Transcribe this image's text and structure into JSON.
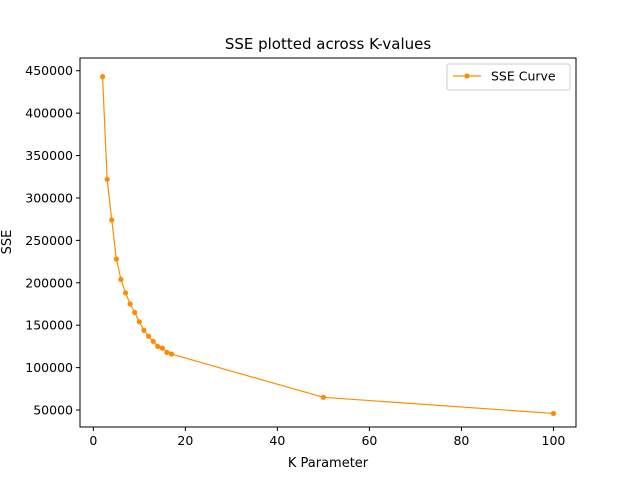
{
  "chart_data": {
    "type": "line",
    "title": "SSE plotted across K-values",
    "xlabel": "K Parameter",
    "ylabel": "SSE",
    "xlim": [
      -2.9,
      104.9
    ],
    "ylim": [
      30000,
      465000
    ],
    "xticks": [
      0,
      20,
      40,
      60,
      80,
      100
    ],
    "yticks": [
      50000,
      100000,
      150000,
      200000,
      250000,
      300000,
      350000,
      400000,
      450000
    ],
    "xtick_labels": [
      "0",
      "20",
      "40",
      "60",
      "80",
      "100"
    ],
    "ytick_labels": [
      "50000",
      "100000",
      "150000",
      "200000",
      "250000",
      "300000",
      "350000",
      "400000",
      "450000"
    ],
    "grid": false,
    "legend_position": "top-right",
    "series": [
      {
        "name": "SSE Curve",
        "color": "#ff8c00",
        "marker": "circle",
        "x": [
          2,
          3,
          4,
          5,
          6,
          7,
          8,
          9,
          10,
          11,
          12,
          13,
          14,
          15,
          16,
          17,
          50,
          100
        ],
        "y": [
          443000,
          322000,
          274000,
          228000,
          204000,
          188000,
          175000,
          165000,
          154000,
          144000,
          137000,
          131000,
          125000,
          123000,
          118000,
          116000,
          65000,
          46000
        ]
      }
    ]
  }
}
